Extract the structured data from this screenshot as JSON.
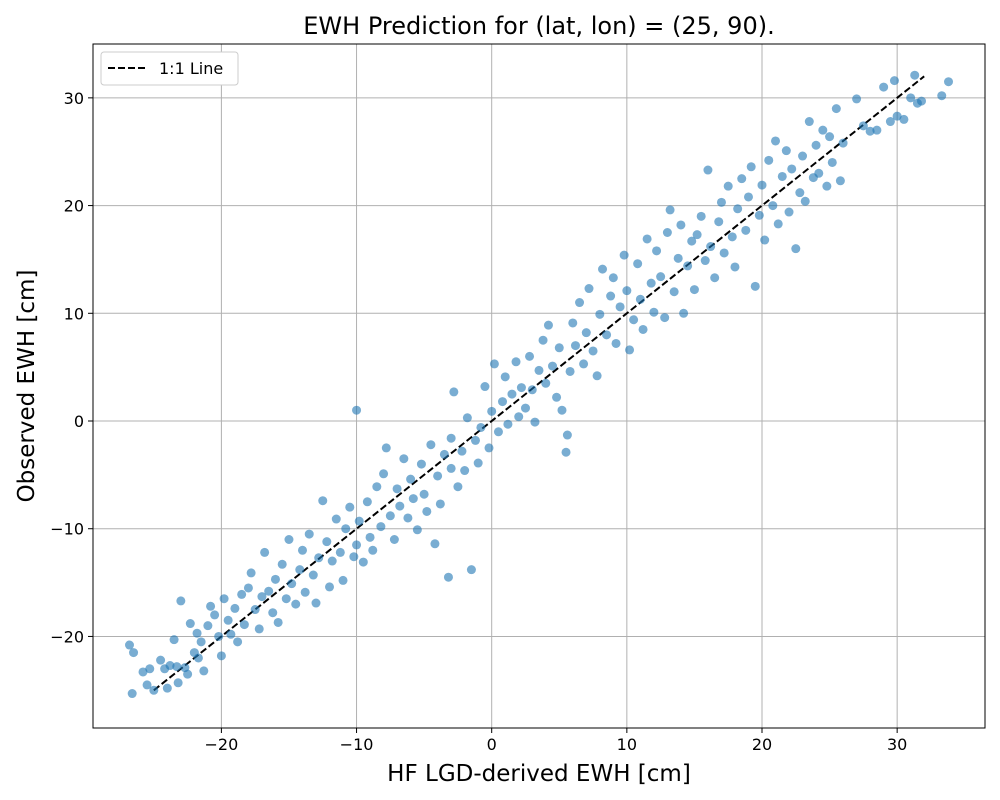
{
  "chart_data": {
    "type": "scatter",
    "title": "EWH Prediction for (lat, lon) = (25, 90).",
    "xlabel": "HF LGD-derived EWH [cm]",
    "ylabel": "Observed EWH [cm]",
    "xlim": [
      -29.5,
      36.5
    ],
    "ylim": [
      -28.5,
      35
    ],
    "xticks": [
      -20,
      -10,
      0,
      10,
      20,
      30
    ],
    "yticks": [
      -20,
      -10,
      0,
      10,
      20,
      30
    ],
    "grid": true,
    "legend": {
      "placement": "top-left",
      "entries": [
        "1:1 Line"
      ]
    },
    "colors": {
      "points": "#1f77b4",
      "line": "#000000"
    },
    "one_to_one_line": {
      "x": [
        -25,
        32
      ],
      "y": [
        -25,
        32
      ]
    },
    "series": [
      {
        "points": [
          [
            -26.8,
            -20.8
          ],
          [
            -26.5,
            -21.5
          ],
          [
            -26.6,
            -25.3
          ],
          [
            -25.8,
            -23.3
          ],
          [
            -25.5,
            -24.5
          ],
          [
            -25.3,
            -23.0
          ],
          [
            -25.0,
            -25.0
          ],
          [
            -24.5,
            -22.2
          ],
          [
            -24.2,
            -23.0
          ],
          [
            -24.0,
            -24.8
          ],
          [
            -23.8,
            -22.7
          ],
          [
            -23.5,
            -20.3
          ],
          [
            -23.3,
            -22.8
          ],
          [
            -23.2,
            -24.3
          ],
          [
            -23.0,
            -16.7
          ],
          [
            -22.7,
            -22.9
          ],
          [
            -22.5,
            -23.5
          ],
          [
            -22.3,
            -18.8
          ],
          [
            -22.0,
            -21.5
          ],
          [
            -21.8,
            -19.7
          ],
          [
            -21.7,
            -22.0
          ],
          [
            -21.5,
            -20.5
          ],
          [
            -21.3,
            -23.2
          ],
          [
            -21.0,
            -19.0
          ],
          [
            -20.8,
            -17.2
          ],
          [
            -20.5,
            -18.0
          ],
          [
            -20.2,
            -20.0
          ],
          [
            -20.0,
            -21.8
          ],
          [
            -19.8,
            -16.5
          ],
          [
            -19.5,
            -18.5
          ],
          [
            -19.3,
            -19.8
          ],
          [
            -19.0,
            -17.4
          ],
          [
            -18.8,
            -20.5
          ],
          [
            -18.5,
            -16.1
          ],
          [
            -18.3,
            -18.9
          ],
          [
            -18.0,
            -15.5
          ],
          [
            -17.8,
            -14.1
          ],
          [
            -17.5,
            -17.5
          ],
          [
            -17.2,
            -19.3
          ],
          [
            -17.0,
            -16.3
          ],
          [
            -16.8,
            -12.2
          ],
          [
            -16.5,
            -15.8
          ],
          [
            -16.2,
            -17.8
          ],
          [
            -16.0,
            -14.7
          ],
          [
            -15.8,
            -18.7
          ],
          [
            -15.5,
            -13.3
          ],
          [
            -15.2,
            -16.5
          ],
          [
            -15.0,
            -11.0
          ],
          [
            -14.8,
            -15.1
          ],
          [
            -14.5,
            -17.0
          ],
          [
            -14.2,
            -13.8
          ],
          [
            -14.0,
            -12.0
          ],
          [
            -13.8,
            -15.9
          ],
          [
            -13.5,
            -10.5
          ],
          [
            -13.2,
            -14.3
          ],
          [
            -13.0,
            -16.9
          ],
          [
            -12.8,
            -12.7
          ],
          [
            -12.5,
            -7.4
          ],
          [
            -12.2,
            -11.2
          ],
          [
            -12.0,
            -15.4
          ],
          [
            -11.8,
            -13.0
          ],
          [
            -11.5,
            -9.1
          ],
          [
            -11.2,
            -12.2
          ],
          [
            -11.0,
            -14.8
          ],
          [
            -10.8,
            -10.0
          ],
          [
            -10.5,
            -8.0
          ],
          [
            -10.2,
            -12.6
          ],
          [
            -10.0,
            1.0
          ],
          [
            -10.0,
            -11.5
          ],
          [
            -9.8,
            -9.3
          ],
          [
            -9.5,
            -13.1
          ],
          [
            -9.2,
            -7.5
          ],
          [
            -9.0,
            -10.8
          ],
          [
            -8.8,
            -12.0
          ],
          [
            -8.5,
            -6.1
          ],
          [
            -8.2,
            -9.8
          ],
          [
            -8.0,
            -4.9
          ],
          [
            -7.8,
            -2.5
          ],
          [
            -7.5,
            -8.8
          ],
          [
            -7.2,
            -11.0
          ],
          [
            -7.0,
            -6.3
          ],
          [
            -6.8,
            -7.9
          ],
          [
            -6.5,
            -3.5
          ],
          [
            -6.2,
            -9.0
          ],
          [
            -6.0,
            -5.4
          ],
          [
            -5.8,
            -7.2
          ],
          [
            -5.5,
            -10.1
          ],
          [
            -5.2,
            -4.0
          ],
          [
            -5.0,
            -6.8
          ],
          [
            -4.8,
            -8.4
          ],
          [
            -4.5,
            -2.2
          ],
          [
            -4.2,
            -11.4
          ],
          [
            -4.0,
            -5.1
          ],
          [
            -3.8,
            -7.7
          ],
          [
            -3.5,
            -3.1
          ],
          [
            -3.2,
            -14.5
          ],
          [
            -3.0,
            -1.6
          ],
          [
            -3.0,
            -4.4
          ],
          [
            -2.8,
            2.7
          ],
          [
            -2.5,
            -6.1
          ],
          [
            -2.2,
            -2.8
          ],
          [
            -2.0,
            -4.6
          ],
          [
            -1.8,
            0.3
          ],
          [
            -1.5,
            -13.8
          ],
          [
            -1.2,
            -1.8
          ],
          [
            -1.0,
            -3.9
          ],
          [
            -0.8,
            -0.6
          ],
          [
            -0.5,
            3.2
          ],
          [
            -0.2,
            -2.5
          ],
          [
            0.0,
            0.9
          ],
          [
            0.2,
            5.3
          ],
          [
            0.5,
            -1.0
          ],
          [
            0.8,
            1.8
          ],
          [
            1.0,
            4.1
          ],
          [
            1.2,
            -0.3
          ],
          [
            1.5,
            2.5
          ],
          [
            1.8,
            5.5
          ],
          [
            2.0,
            0.4
          ],
          [
            2.2,
            3.1
          ],
          [
            2.5,
            1.2
          ],
          [
            2.8,
            6.0
          ],
          [
            3.0,
            2.9
          ],
          [
            3.2,
            -0.1
          ],
          [
            3.5,
            4.7
          ],
          [
            3.8,
            7.5
          ],
          [
            4.0,
            3.5
          ],
          [
            4.2,
            8.9
          ],
          [
            4.5,
            5.1
          ],
          [
            4.8,
            2.2
          ],
          [
            5.0,
            6.8
          ],
          [
            5.2,
            1.0
          ],
          [
            5.5,
            -2.9
          ],
          [
            5.6,
            -1.3
          ],
          [
            5.8,
            4.6
          ],
          [
            6.0,
            9.1
          ],
          [
            6.2,
            7.0
          ],
          [
            6.5,
            11.0
          ],
          [
            6.8,
            5.3
          ],
          [
            7.0,
            8.2
          ],
          [
            7.2,
            12.3
          ],
          [
            7.5,
            6.5
          ],
          [
            7.8,
            4.2
          ],
          [
            8.0,
            9.9
          ],
          [
            8.2,
            14.1
          ],
          [
            8.5,
            8.0
          ],
          [
            8.8,
            11.6
          ],
          [
            9.0,
            13.3
          ],
          [
            9.2,
            7.2
          ],
          [
            9.5,
            10.6
          ],
          [
            9.8,
            15.4
          ],
          [
            10.0,
            12.1
          ],
          [
            10.2,
            6.6
          ],
          [
            10.5,
            9.4
          ],
          [
            10.8,
            14.6
          ],
          [
            11.0,
            11.3
          ],
          [
            11.2,
            8.5
          ],
          [
            11.5,
            16.9
          ],
          [
            11.8,
            12.8
          ],
          [
            12.0,
            10.1
          ],
          [
            12.2,
            15.8
          ],
          [
            12.5,
            13.4
          ],
          [
            12.8,
            9.6
          ],
          [
            13.0,
            17.5
          ],
          [
            13.2,
            19.6
          ],
          [
            13.5,
            12.0
          ],
          [
            13.8,
            15.1
          ],
          [
            14.0,
            18.2
          ],
          [
            14.2,
            10.0
          ],
          [
            14.5,
            14.4
          ],
          [
            14.8,
            16.7
          ],
          [
            15.0,
            12.2
          ],
          [
            15.2,
            17.3
          ],
          [
            15.5,
            19.0
          ],
          [
            15.8,
            14.9
          ],
          [
            16.0,
            23.3
          ],
          [
            16.2,
            16.2
          ],
          [
            16.5,
            13.3
          ],
          [
            16.8,
            18.5
          ],
          [
            17.0,
            20.3
          ],
          [
            17.2,
            15.6
          ],
          [
            17.5,
            21.8
          ],
          [
            17.8,
            17.1
          ],
          [
            18.0,
            14.3
          ],
          [
            18.2,
            19.7
          ],
          [
            18.5,
            22.5
          ],
          [
            18.8,
            17.7
          ],
          [
            19.0,
            20.8
          ],
          [
            19.2,
            23.6
          ],
          [
            19.5,
            12.5
          ],
          [
            19.8,
            19.1
          ],
          [
            20.0,
            21.9
          ],
          [
            20.2,
            16.8
          ],
          [
            20.5,
            24.2
          ],
          [
            20.8,
            20.0
          ],
          [
            21.0,
            26.0
          ],
          [
            21.2,
            18.3
          ],
          [
            21.5,
            22.7
          ],
          [
            21.8,
            25.1
          ],
          [
            22.0,
            19.4
          ],
          [
            22.2,
            23.4
          ],
          [
            22.5,
            16.0
          ],
          [
            22.8,
            21.2
          ],
          [
            23.0,
            24.6
          ],
          [
            23.2,
            20.4
          ],
          [
            23.5,
            27.8
          ],
          [
            23.8,
            22.6
          ],
          [
            24.0,
            25.6
          ],
          [
            24.2,
            23.0
          ],
          [
            24.5,
            27.0
          ],
          [
            24.8,
            21.8
          ],
          [
            25.0,
            26.4
          ],
          [
            25.2,
            24.0
          ],
          [
            25.5,
            29.0
          ],
          [
            25.8,
            22.3
          ],
          [
            26.0,
            25.8
          ],
          [
            27.0,
            29.9
          ],
          [
            27.5,
            27.4
          ],
          [
            28.0,
            26.9
          ],
          [
            28.5,
            27.0
          ],
          [
            29.0,
            31.0
          ],
          [
            29.5,
            27.8
          ],
          [
            29.8,
            31.6
          ],
          [
            30.0,
            28.3
          ],
          [
            30.5,
            28.0
          ],
          [
            31.0,
            30.0
          ],
          [
            31.3,
            32.1
          ],
          [
            31.5,
            29.5
          ],
          [
            31.8,
            29.7
          ],
          [
            33.3,
            30.2
          ],
          [
            33.8,
            31.5
          ]
        ]
      }
    ]
  }
}
